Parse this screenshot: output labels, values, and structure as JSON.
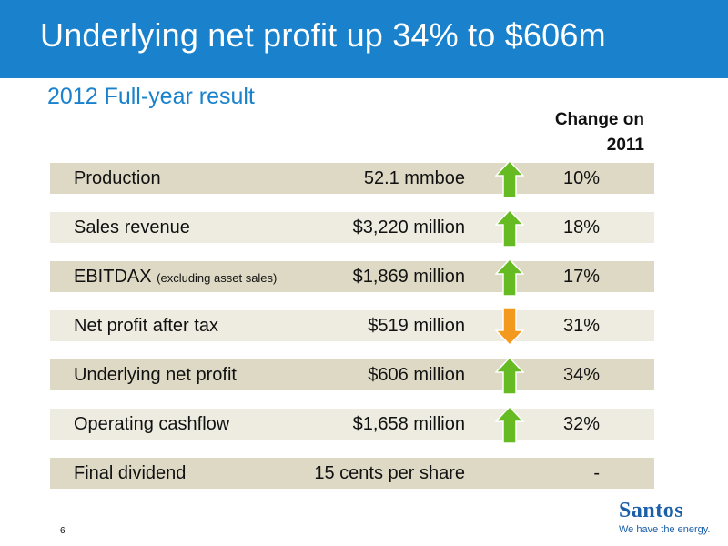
{
  "slide": {
    "title": "Underlying net profit up 34% to $606m",
    "subtitle": "2012 Full-year result",
    "change_header_line1": "Change on",
    "change_header_line2": "2011",
    "page_number": "6"
  },
  "colors": {
    "title_bar": "#1a82cc",
    "row_dark": "#ddd9c4",
    "row_light": "#eeece1",
    "arrow_up": "#66bb22",
    "arrow_down": "#f39a1e"
  },
  "rows": [
    {
      "label": "Production",
      "note": "",
      "value": "52.1 mmboe",
      "change": "10%",
      "direction": "up"
    },
    {
      "label": "Sales revenue",
      "note": "",
      "value": "$3,220 million",
      "change": "18%",
      "direction": "up"
    },
    {
      "label": "EBITDAX",
      "note": "(excluding asset sales)",
      "value": "$1,869 million",
      "change": "17%",
      "direction": "up"
    },
    {
      "label": "Net profit after tax",
      "note": "",
      "value": "$519 million",
      "change": "31%",
      "direction": "down"
    },
    {
      "label": "Underlying net profit",
      "note": "",
      "value": "$606 million",
      "change": "34%",
      "direction": "up"
    },
    {
      "label": "Operating cashflow",
      "note": "",
      "value": "$1,658 million",
      "change": "32%",
      "direction": "up"
    },
    {
      "label": "Final dividend",
      "note": "",
      "value": "15 cents per share",
      "change": "-",
      "direction": "none"
    }
  ],
  "logo": {
    "name": "Santos",
    "tagline": "We have the energy."
  }
}
